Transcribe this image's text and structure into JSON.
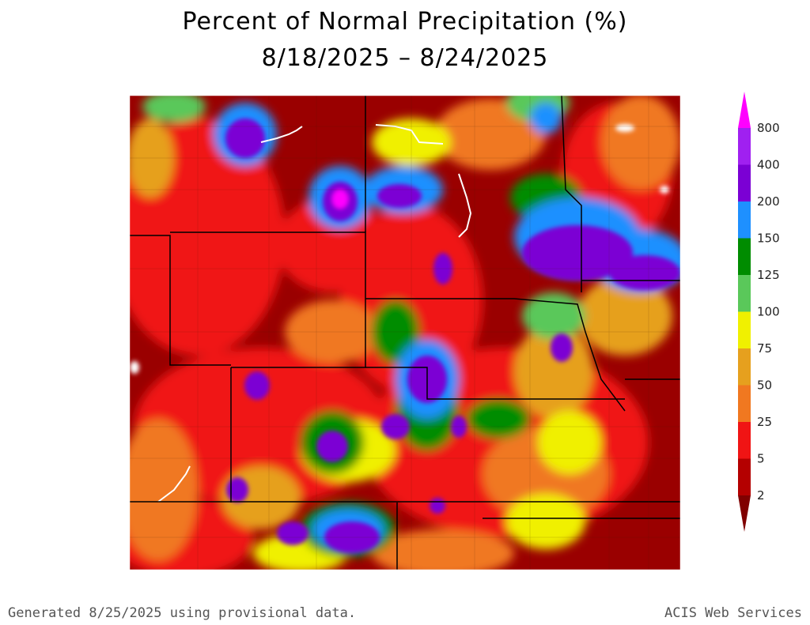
{
  "title": "Percent of Normal Precipitation (%)",
  "subtitle": "8/18/2025 – 8/24/2025",
  "legend": {
    "labels": [
      "800",
      "400",
      "200",
      "150",
      "125",
      "100",
      "75",
      "50",
      "25",
      "5",
      "2"
    ],
    "colors": [
      "#ff00ff",
      "#a020f0",
      "#7b00d4",
      "#1e90ff",
      "#008c00",
      "#5ac85a",
      "#f0f000",
      "#e6a01e",
      "#f07820",
      "#f01414",
      "#b40000",
      "#800000"
    ]
  },
  "map": {
    "background_color": "#9a0000",
    "palette": {
      "dark_red": "#8c0000",
      "red": "#f01414",
      "orange": "#f07820",
      "light_orange": "#e6a01e",
      "yellow": "#f0f000",
      "light_green": "#5ac85a",
      "green": "#008c00",
      "blue": "#1e90ff",
      "purple": "#7b00d4",
      "magenta": "#ff00ff",
      "white": "#ffffff"
    }
  },
  "footer": {
    "left": "Generated 8/25/2025 using provisional data.",
    "right": "ACIS Web Services"
  }
}
